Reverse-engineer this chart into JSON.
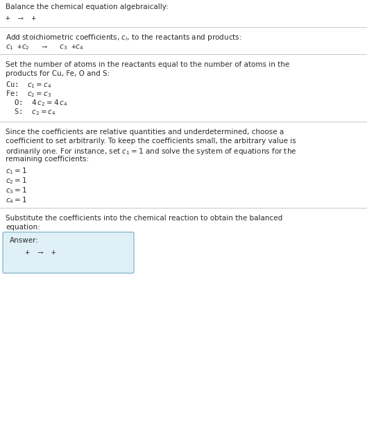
{
  "title": "Balance the chemical equation algebraically:",
  "line1": "+  ⟶  +",
  "section2_title": "Add stoichiometric coefficients, $c_i$, to the reactants and products:",
  "line2": "$c_1$ +$c_2$   ⟶   $c_3$ +$c_4$",
  "section3_title": "Set the number of atoms in the reactants equal to the number of atoms in the\nproducts for Cu, Fe, O and S:",
  "equations": [
    "Cu:  $c_1 = c_4$",
    "Fe:  $c_2 = c_3$",
    "  O:  $4\\,c_2 = 4\\,c_4$",
    "  S:  $c_2 = c_4$"
  ],
  "section4_title": "Since the coefficients are relative quantities and underdetermined, choose a\ncoefficient to set arbitrarily. To keep the coefficients small, the arbitrary value is\nordinarily one. For instance, set $c_1 = 1$ and solve the system of equations for the\nremaining coefficients:",
  "coeff_values": [
    "$c_1 = 1$",
    "$c_2 = 1$",
    "$c_3 = 1$",
    "$c_4 = 1$"
  ],
  "section5_title": "Substitute the coefficients into the chemical reaction to obtain the balanced\nequation:",
  "answer_label": "Answer:",
  "answer_eq": "  +  ⟶  +",
  "bg_color": "#ffffff",
  "text_color": "#2a2a2a",
  "line_color": "#c8c8c8",
  "answer_box_color": "#dff0f7",
  "answer_box_border": "#88bbcc",
  "fs_body": 7.5,
  "fs_math": 7.5,
  "fs_mono": 7.5
}
